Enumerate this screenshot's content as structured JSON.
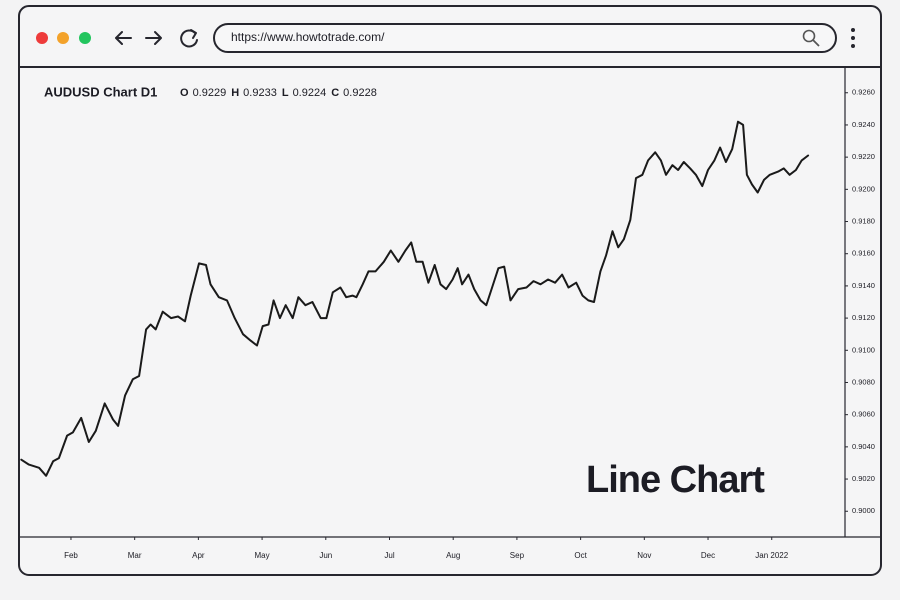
{
  "browser": {
    "url": "https://www.howtotrade.com/"
  },
  "chart_data": {
    "type": "line",
    "title": "AUDUSD Chart D1",
    "ohlc": [
      {
        "key": "O",
        "value": 0.9229
      },
      {
        "key": "H",
        "value": 0.9233
      },
      {
        "key": "L",
        "value": 0.9224
      },
      {
        "key": "C",
        "value": 0.9228
      }
    ],
    "annotation": "Line Chart",
    "x": [
      0.22,
      0.34,
      0.5,
      0.61,
      0.72,
      0.81,
      0.94,
      1.03,
      1.16,
      1.28,
      1.39,
      1.53,
      1.66,
      1.74,
      1.85,
      1.97,
      2.07,
      2.18,
      2.25,
      2.33,
      2.44,
      2.57,
      2.68,
      2.79,
      2.88,
      3.01,
      3.12,
      3.19,
      3.32,
      3.45,
      3.57,
      3.7,
      3.82,
      3.92,
      4.01,
      4.1,
      4.18,
      4.28,
      4.37,
      4.48,
      4.57,
      4.68,
      4.79,
      4.92,
      5.01,
      5.11,
      5.23,
      5.32,
      5.42,
      5.48,
      5.58,
      5.67,
      5.78,
      5.91,
      6.02,
      6.14,
      6.25,
      6.34,
      6.42,
      6.52,
      6.61,
      6.71,
      6.8,
      6.89,
      6.99,
      7.07,
      7.14,
      7.24,
      7.33,
      7.43,
      7.52,
      7.61,
      7.71,
      7.8,
      7.9,
      8.02,
      8.15,
      8.26,
      8.37,
      8.49,
      8.6,
      8.71,
      8.81,
      8.93,
      9.03,
      9.12,
      9.21,
      9.31,
      9.4,
      9.5,
      9.59,
      9.68,
      9.78,
      9.87,
      9.97,
      10.06,
      10.17,
      10.26,
      10.34,
      10.44,
      10.53,
      10.62,
      10.72,
      10.81,
      10.91,
      11.0,
      11.1,
      11.19,
      11.28,
      11.38,
      11.47,
      11.55,
      11.61,
      11.69,
      11.78,
      11.88,
      11.97,
      12.1,
      12.19,
      12.28,
      12.38,
      12.47,
      12.57
    ],
    "series": [
      {
        "color": "#1a1a1a",
        "values": [
          0.9032,
          0.9029,
          0.9027,
          0.9022,
          0.9031,
          0.9033,
          0.9047,
          0.9049,
          0.9058,
          0.9043,
          0.905,
          0.9067,
          0.9057,
          0.9053,
          0.9072,
          0.9082,
          0.9084,
          0.9113,
          0.9116,
          0.9113,
          0.9124,
          0.912,
          0.9121,
          0.9118,
          0.9134,
          0.9154,
          0.9153,
          0.9141,
          0.9133,
          0.9131,
          0.912,
          0.911,
          0.9106,
          0.9103,
          0.9115,
          0.9116,
          0.9131,
          0.912,
          0.9128,
          0.912,
          0.9133,
          0.9128,
          0.913,
          0.912,
          0.912,
          0.9136,
          0.9139,
          0.9133,
          0.9134,
          0.9133,
          0.9141,
          0.9149,
          0.9149,
          0.9155,
          0.9162,
          0.9155,
          0.9162,
          0.9167,
          0.9155,
          0.9155,
          0.9142,
          0.9153,
          0.9141,
          0.9138,
          0.9144,
          0.9151,
          0.9141,
          0.9147,
          0.9138,
          0.9131,
          0.9128,
          0.9139,
          0.9151,
          0.9152,
          0.9131,
          0.9138,
          0.9139,
          0.9143,
          0.9141,
          0.9144,
          0.9142,
          0.9147,
          0.9139,
          0.9142,
          0.9134,
          0.9131,
          0.913,
          0.9149,
          0.9159,
          0.9174,
          0.9164,
          0.9169,
          0.9181,
          0.9207,
          0.9209,
          0.9218,
          0.9223,
          0.9218,
          0.9209,
          0.9215,
          0.9212,
          0.9217,
          0.9213,
          0.9209,
          0.9202,
          0.9212,
          0.9218,
          0.9226,
          0.9217,
          0.9225,
          0.9242,
          0.924,
          0.9209,
          0.9203,
          0.9198,
          0.9206,
          0.9209,
          0.9211,
          0.9213,
          0.9209,
          0.9212,
          0.9218,
          0.9221
        ]
      }
    ],
    "xlim": [
      0.2,
      13.15
    ],
    "xticks": [
      {
        "value": 1,
        "label": "Feb"
      },
      {
        "value": 2,
        "label": "Mar"
      },
      {
        "value": 3,
        "label": "Apr"
      },
      {
        "value": 4,
        "label": "May"
      },
      {
        "value": 5,
        "label": "Jun"
      },
      {
        "value": 6,
        "label": "Jul"
      },
      {
        "value": 7,
        "label": "Aug"
      },
      {
        "value": 8,
        "label": "Sep"
      },
      {
        "value": 9,
        "label": "Oct"
      },
      {
        "value": 10,
        "label": "Nov"
      },
      {
        "value": 11,
        "label": "Dec"
      },
      {
        "value": 12,
        "label": "Jan 2022"
      }
    ],
    "ylim": [
      0.8984,
      0.9276
    ],
    "yticks": [
      {
        "value": 0.9,
        "label": "0.9000"
      },
      {
        "value": 0.902,
        "label": "0.9020"
      },
      {
        "value": 0.904,
        "label": "0.9040"
      },
      {
        "value": 0.906,
        "label": "0.9060"
      },
      {
        "value": 0.908,
        "label": "0.9080"
      },
      {
        "value": 0.91,
        "label": "0.9100"
      },
      {
        "value": 0.912,
        "label": "0.9120"
      },
      {
        "value": 0.914,
        "label": "0.9140"
      },
      {
        "value": 0.916,
        "label": "0.9160"
      },
      {
        "value": 0.918,
        "label": "0.9180"
      },
      {
        "value": 0.92,
        "label": "0.9200"
      },
      {
        "value": 0.922,
        "label": "0.9220"
      },
      {
        "value": 0.924,
        "label": "0.9240"
      },
      {
        "value": 0.926,
        "label": "0.9260"
      }
    ],
    "y_axis_side": "right",
    "grid": false
  }
}
